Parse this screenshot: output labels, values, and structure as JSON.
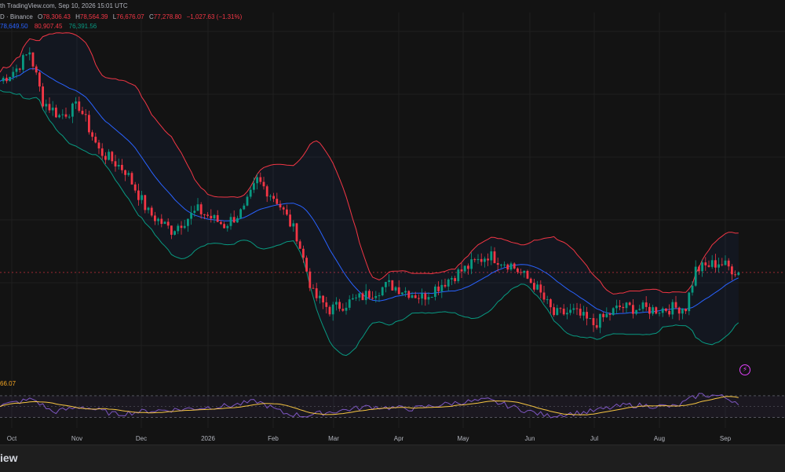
{
  "header": {
    "published_text": "th TradingView.com, Sep 10, 2026 15:01 UTC"
  },
  "legend": {
    "symbol_text": "D · Binance",
    "open_label": "O",
    "open": "78,306.43",
    "high_label": "H",
    "high": "78,564.39",
    "low_label": "L",
    "low": "76,676.07",
    "close_label": "C",
    "close": "77,278.80",
    "change": "−1,027.63 (−1.31%)",
    "bb_basis": "78,649.50",
    "bb_upper": "80,907.45",
    "bb_lower": "76,391.56"
  },
  "rsi": {
    "value_text": "66.07"
  },
  "footer": {
    "brand": "iew"
  },
  "colors": {
    "up": "#089981",
    "down": "#f23645",
    "basis": "#2962ff",
    "upper": "#f23645",
    "lower": "#089981",
    "rsi_line": "#7e57c2",
    "rsi_ma": "#f5c542"
  },
  "chart_data": {
    "type": "candlestick",
    "price_ylim": [
      60000,
      128000
    ],
    "x_axis_labels": [
      "Oct",
      "Nov",
      "Dec",
      "2026",
      "Feb",
      "Mar",
      "Apr",
      "May",
      "Jun",
      "Jul",
      "Aug",
      "Sep"
    ],
    "price_anchors": [
      {
        "day": 0,
        "value": 118000
      },
      {
        "day": 5,
        "value": 120500
      },
      {
        "day": 9,
        "value": 124000
      },
      {
        "day": 13,
        "value": 114000
      },
      {
        "day": 18,
        "value": 111000
      },
      {
        "day": 24,
        "value": 113000
      },
      {
        "day": 30,
        "value": 104000
      },
      {
        "day": 38,
        "value": 100000
      },
      {
        "day": 45,
        "value": 91500
      },
      {
        "day": 52,
        "value": 88000
      },
      {
        "day": 60,
        "value": 92000
      },
      {
        "day": 68,
        "value": 89000
      },
      {
        "day": 74,
        "value": 92000
      },
      {
        "day": 78,
        "value": 98000
      },
      {
        "day": 84,
        "value": 94000
      },
      {
        "day": 90,
        "value": 87000
      },
      {
        "day": 95,
        "value": 75000
      },
      {
        "day": 100,
        "value": 72000
      },
      {
        "day": 108,
        "value": 74000
      },
      {
        "day": 118,
        "value": 77000
      },
      {
        "day": 128,
        "value": 74500
      },
      {
        "day": 138,
        "value": 79000
      },
      {
        "day": 148,
        "value": 83000
      },
      {
        "day": 155,
        "value": 81000
      },
      {
        "day": 162,
        "value": 77000
      },
      {
        "day": 168,
        "value": 71000
      },
      {
        "day": 174,
        "value": 71500
      },
      {
        "day": 180,
        "value": 69000
      },
      {
        "day": 188,
        "value": 72500
      },
      {
        "day": 198,
        "value": 72000
      },
      {
        "day": 208,
        "value": 72500
      },
      {
        "day": 211,
        "value": 80000
      },
      {
        "day": 218,
        "value": 81500
      },
      {
        "day": 224,
        "value": 79500
      }
    ],
    "rsi_anchors": [
      {
        "day": 0,
        "value": 52
      },
      {
        "day": 10,
        "value": 64
      },
      {
        "day": 16,
        "value": 40
      },
      {
        "day": 25,
        "value": 50
      },
      {
        "day": 35,
        "value": 36
      },
      {
        "day": 45,
        "value": 42
      },
      {
        "day": 55,
        "value": 45
      },
      {
        "day": 70,
        "value": 52
      },
      {
        "day": 78,
        "value": 60
      },
      {
        "day": 86,
        "value": 38
      },
      {
        "day": 92,
        "value": 33
      },
      {
        "day": 100,
        "value": 40
      },
      {
        "day": 112,
        "value": 50
      },
      {
        "day": 125,
        "value": 46
      },
      {
        "day": 138,
        "value": 57
      },
      {
        "day": 148,
        "value": 62
      },
      {
        "day": 158,
        "value": 45
      },
      {
        "day": 166,
        "value": 33
      },
      {
        "day": 178,
        "value": 40
      },
      {
        "day": 190,
        "value": 53
      },
      {
        "day": 205,
        "value": 50
      },
      {
        "day": 212,
        "value": 72
      },
      {
        "day": 218,
        "value": 70
      },
      {
        "day": 224,
        "value": 58
      }
    ]
  }
}
